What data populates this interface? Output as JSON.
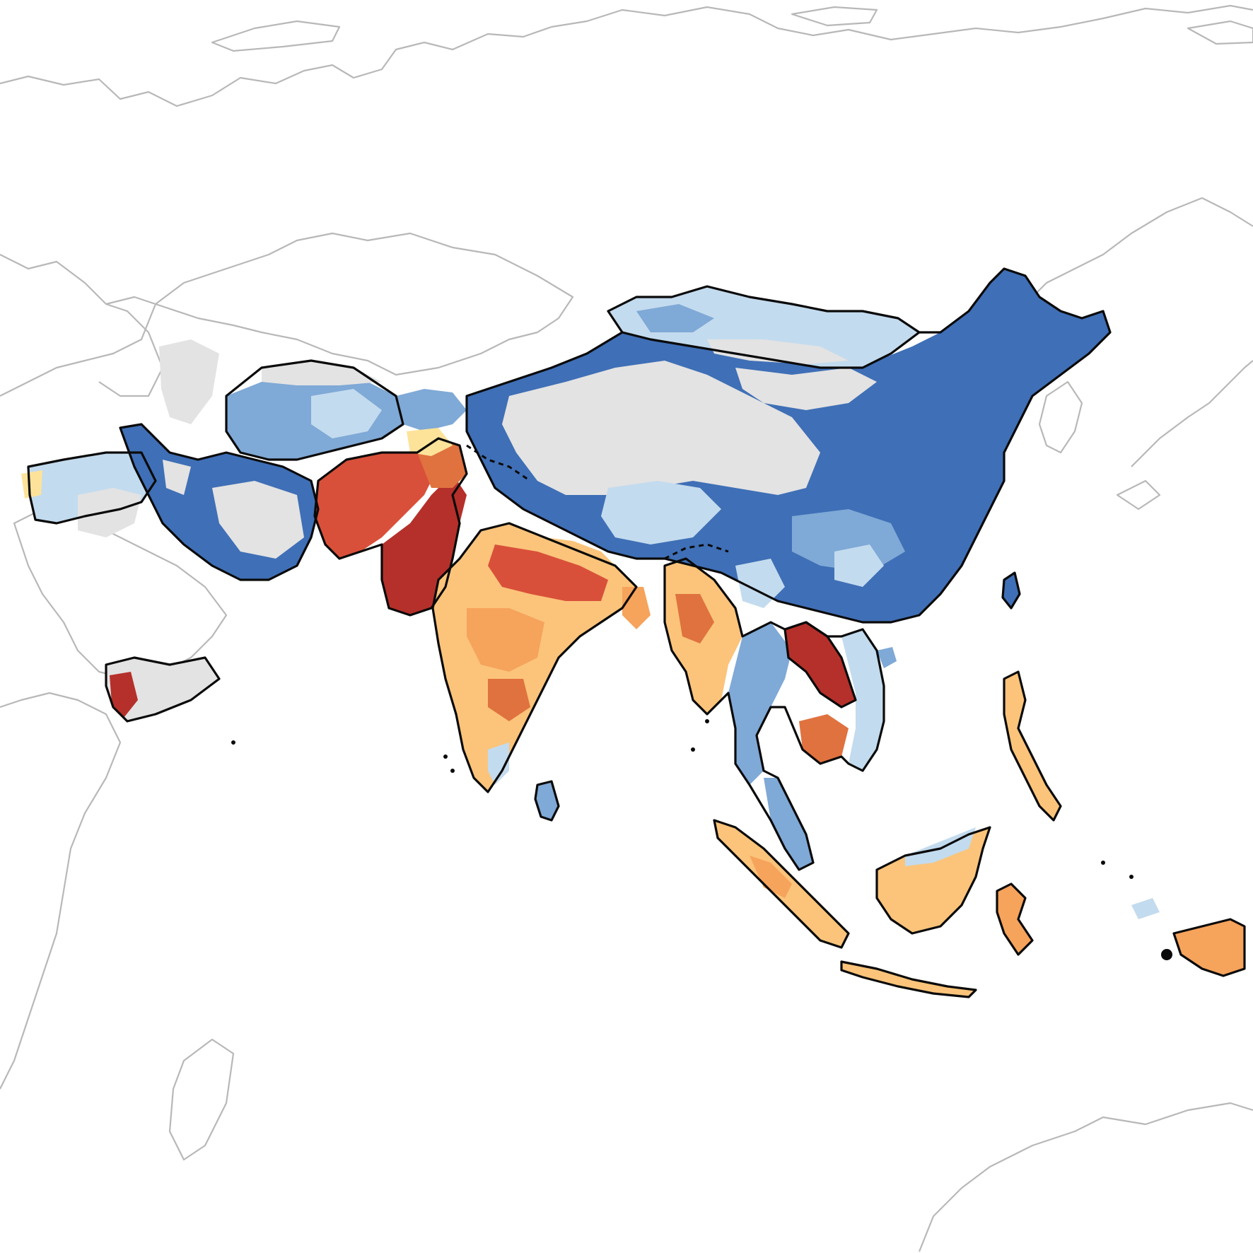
{
  "map": {
    "type": "choropleth-raster",
    "region": "Asia",
    "legend": null,
    "colors": {
      "strong_negative": "#3f6fb6",
      "negative": "#7fa9d6",
      "weak_negative": "#c3dbee",
      "neutral": "#f1ecd2",
      "weak_positive": "#fde39a",
      "positive": "#f6a35c",
      "strong_positive": "#b5302a",
      "no_data": "#e3e3e3",
      "context_boundary": "#b8b8b8",
      "study_boundary": "#0a0a0a"
    }
  }
}
